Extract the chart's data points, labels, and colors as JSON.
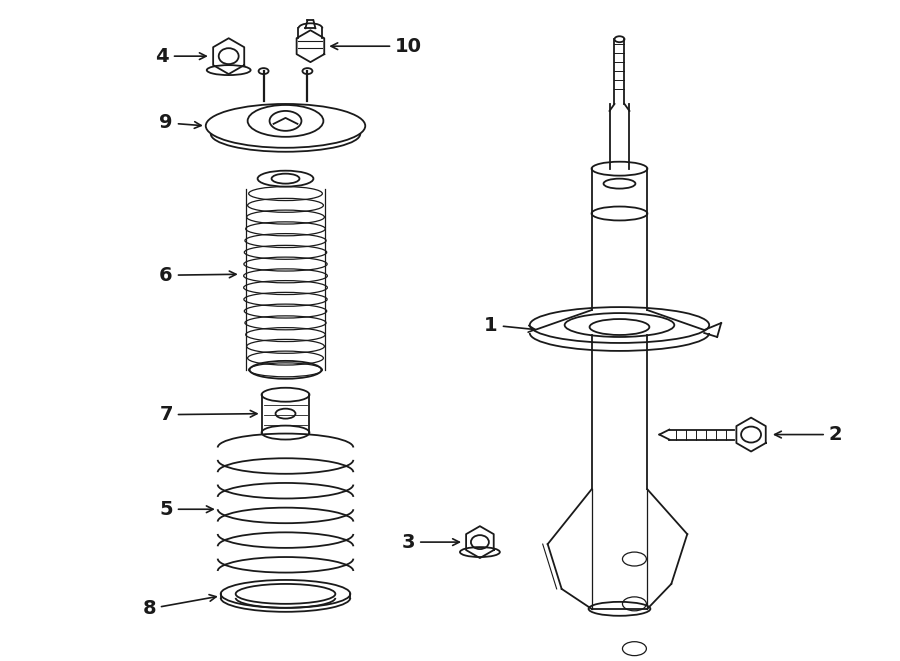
{
  "bg_color": "#ffffff",
  "line_color": "#1a1a1a",
  "fig_width": 9.0,
  "fig_height": 6.61,
  "dpi": 100,
  "lw": 1.3
}
